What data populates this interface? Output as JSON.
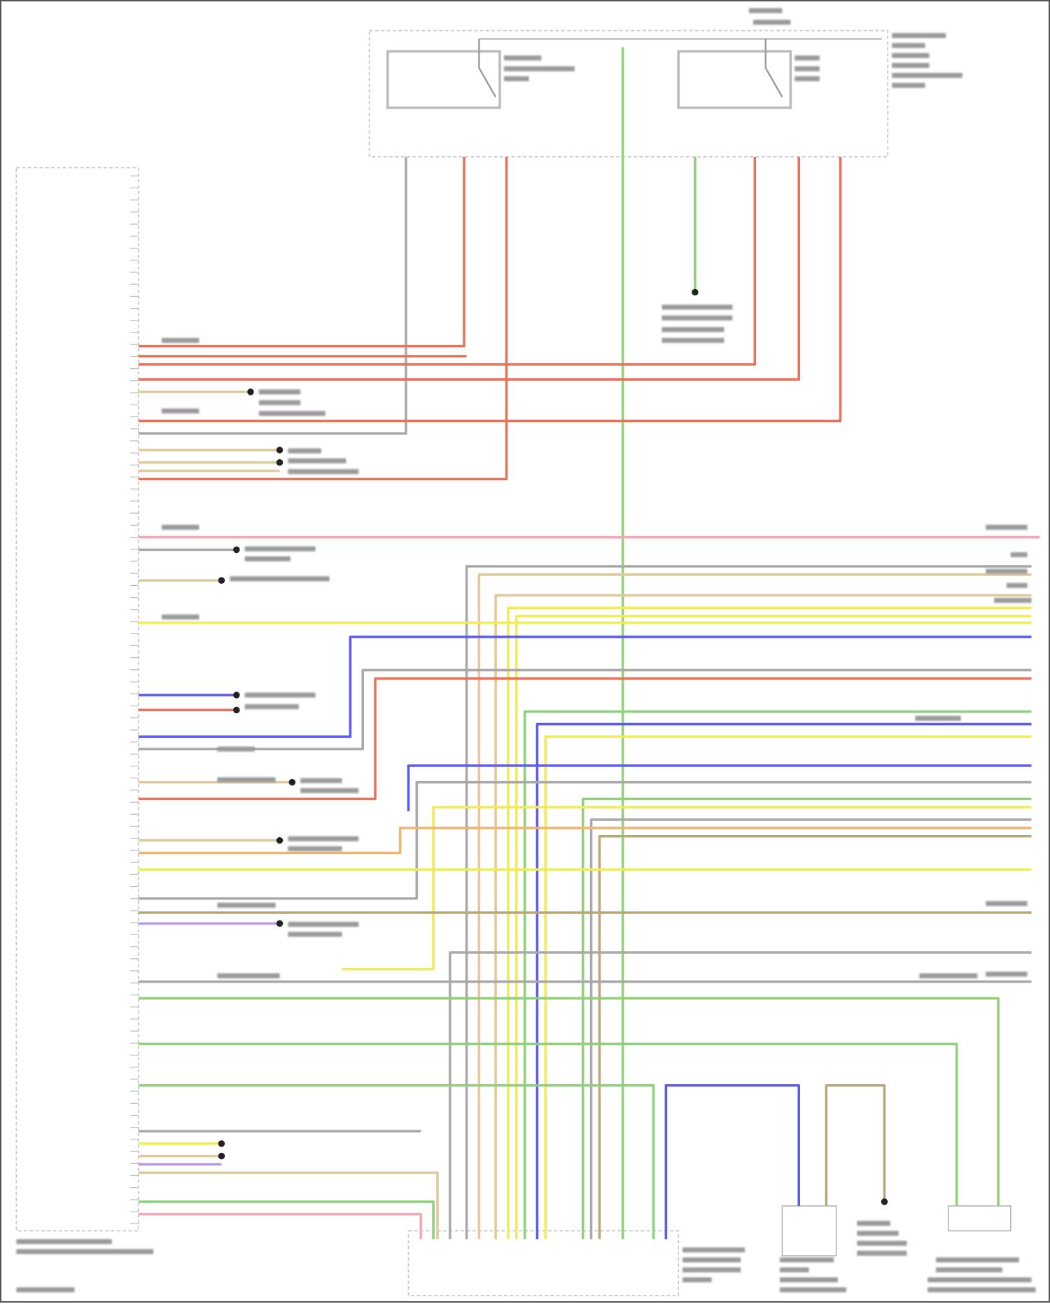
{
  "diagram": {
    "wire_colors": {
      "red": "#e8735a",
      "green": "#8fd07a",
      "yellow": "#f1ec55",
      "blue": "#5b5bf0",
      "tan": "#e2c99c",
      "grey": "#a9a9a9",
      "pink": "#f4a6b5",
      "orange": "#f4b26e",
      "olive": "#b9a77a",
      "violet": "#b49ae8"
    },
    "components": [
      {
        "id": "left-control-module",
        "kind": "connector-block"
      },
      {
        "id": "relay-box",
        "kind": "fuse-relay-box",
        "relays": 2
      },
      {
        "id": "bottom-control-module",
        "kind": "connector-block"
      },
      {
        "id": "brake-switch",
        "kind": "switch"
      },
      {
        "id": "lower-right-switch",
        "kind": "switch"
      }
    ],
    "text_legibility": "illegible"
  }
}
